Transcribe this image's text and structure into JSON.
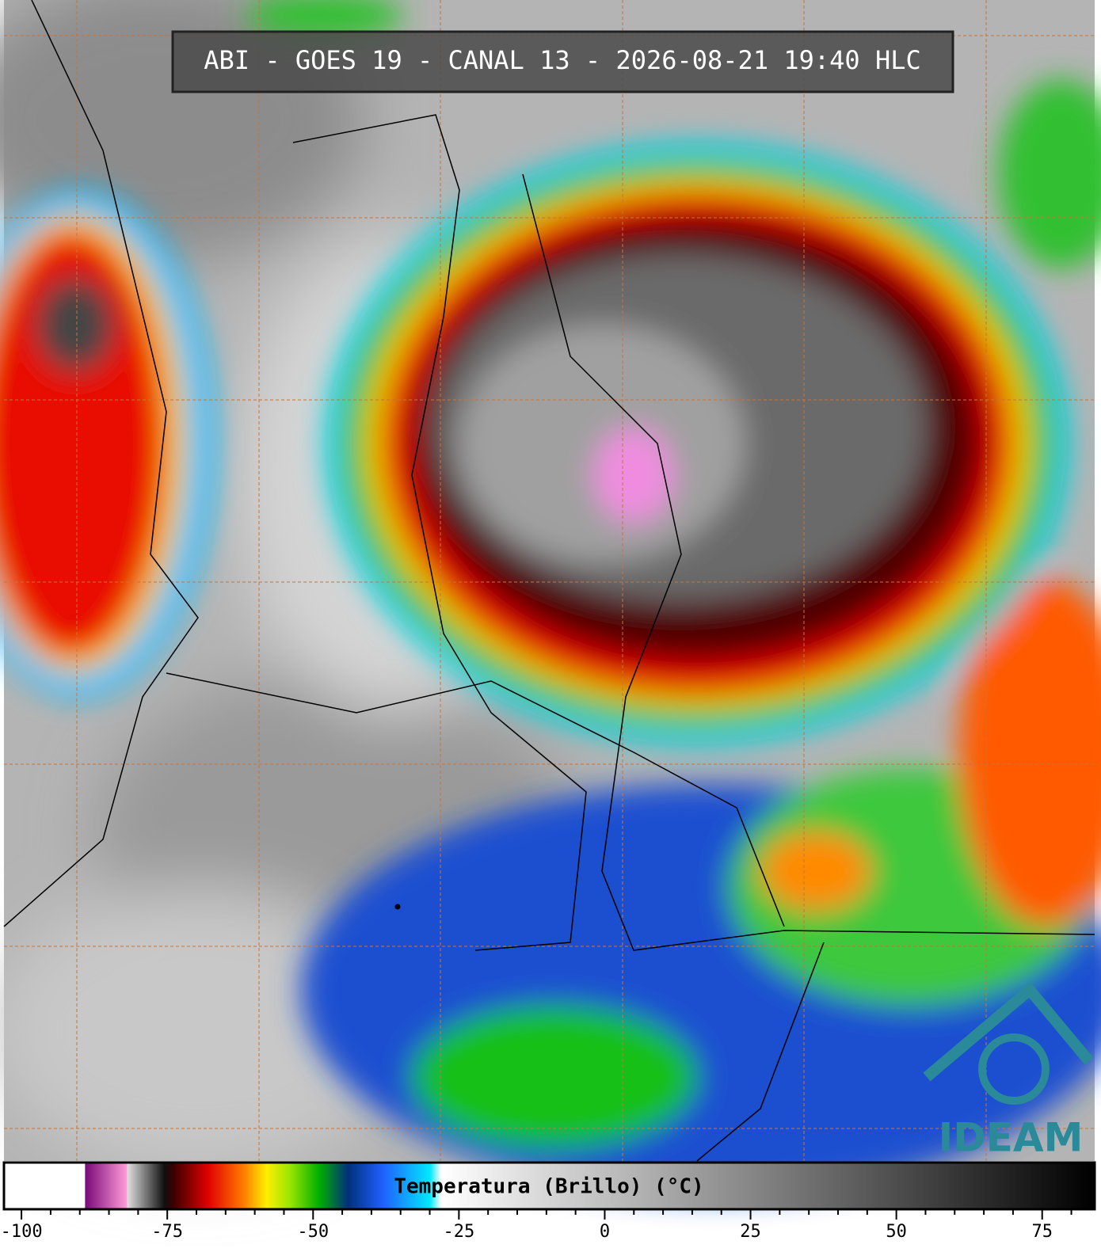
{
  "title": "ABI - GOES 19 - CANAL 13 - 2026-08-21 19:40 HLC",
  "logo": "IDEAM",
  "colorbar": {
    "label": "Temperatura (Brillo) (°C)",
    "xlim": [
      -103,
      84
    ],
    "xticks": [
      -100,
      -75,
      -50,
      -25,
      0,
      25,
      50,
      75
    ],
    "minor_xticks": [
      -95,
      -90,
      -85,
      -80,
      -70,
      -65,
      -60,
      -55,
      -45,
      -40,
      -35,
      -30,
      -20,
      -15,
      -10,
      -5,
      5,
      10,
      15,
      20,
      30,
      35,
      40,
      45,
      55,
      60,
      65,
      70,
      80
    ],
    "colormap": [
      {
        "value": -103,
        "color": "#ffffff"
      },
      {
        "value": -89.2,
        "color": "#ffffff"
      },
      {
        "value": -89,
        "color": "#7a0a7a"
      },
      {
        "value": -82,
        "color": "#ff9ad8"
      },
      {
        "value": -81.8,
        "color": "#dddddd"
      },
      {
        "value": -75.5,
        "color": "#111111"
      },
      {
        "value": -74,
        "color": "#3a0000"
      },
      {
        "value": -68,
        "color": "#e00000"
      },
      {
        "value": -62,
        "color": "#ff7a00"
      },
      {
        "value": -58,
        "color": "#ffee00"
      },
      {
        "value": -54,
        "color": "#9be600"
      },
      {
        "value": -49,
        "color": "#00b000"
      },
      {
        "value": -44,
        "color": "#00307a"
      },
      {
        "value": -38,
        "color": "#2060ff"
      },
      {
        "value": -30,
        "color": "#00e8ff"
      },
      {
        "value": -28,
        "color": "#ffffff"
      },
      {
        "value": 84,
        "color": "#000000"
      }
    ]
  }
}
